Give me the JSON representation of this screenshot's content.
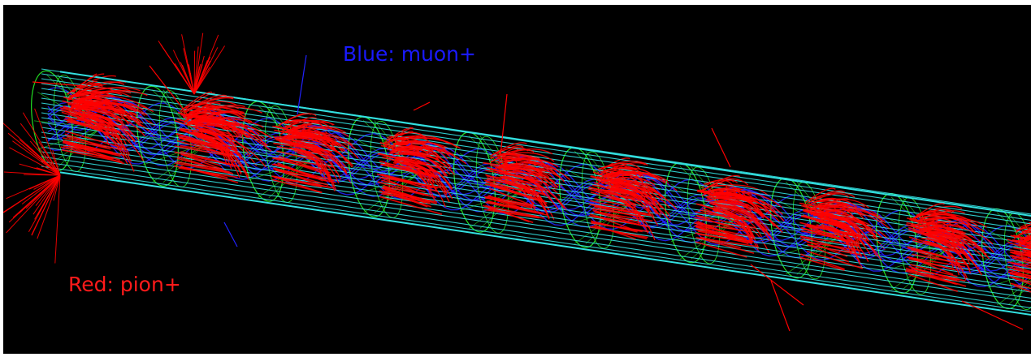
{
  "legend": {
    "blue_label": "Blue: muon+",
    "red_label": "Red: pion+"
  },
  "colors": {
    "background": "#000000",
    "frame": "#ffffff",
    "pion_tracks": "#ff0000",
    "muon_tracks": "#2222ff",
    "tube_outline": "#33e0e0",
    "section_rings": "#22dd22"
  }
}
